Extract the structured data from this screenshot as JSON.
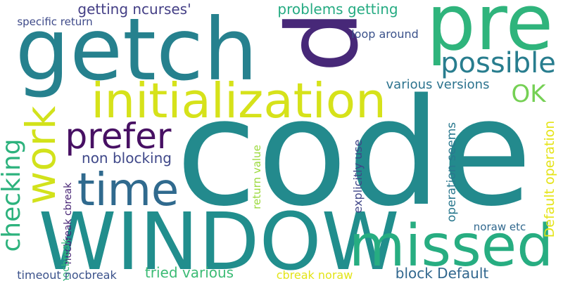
{
  "cloud": {
    "words": [
      {
        "text": "code",
        "color": "#238a8d",
        "rotate": 0
      },
      {
        "text": "WINDOW",
        "color": "#218e8d",
        "rotate": 0
      },
      {
        "text": "getch",
        "color": "#26818e",
        "rotate": 0
      },
      {
        "text": "p",
        "color": "#472878",
        "rotate": 90
      },
      {
        "text": "pre",
        "color": "#2fb47c",
        "rotate": 0
      },
      {
        "text": "initialization",
        "color": "#d6e21a",
        "rotate": 0
      },
      {
        "text": "missed",
        "color": "#27ad81",
        "rotate": 0
      },
      {
        "text": "time",
        "color": "#306a8e",
        "rotate": 0
      },
      {
        "text": "prefer",
        "color": "#471063",
        "rotate": 0
      },
      {
        "text": "work",
        "color": "#d2e21b",
        "rotate": -90
      },
      {
        "text": "possible",
        "color": "#287d8e",
        "rotate": 0
      },
      {
        "text": "checking",
        "color": "#2db27d",
        "rotate": -90
      },
      {
        "text": "OK",
        "color": "#75d054",
        "rotate": 0
      },
      {
        "text": "problems getting",
        "color": "#25ab82",
        "rotate": 0
      },
      {
        "text": "getting ncurses'",
        "color": "#433e85",
        "rotate": 0
      },
      {
        "text": "non blocking",
        "color": "#3f4889",
        "rotate": 0
      },
      {
        "text": "various versions",
        "color": "#2c738e",
        "rotate": 0
      },
      {
        "text": "tried various",
        "color": "#3cbb75",
        "rotate": 0
      },
      {
        "text": "block Default",
        "color": "#31678e",
        "rotate": 0
      },
      {
        "text": "specific return",
        "color": "#3e4a89",
        "rotate": 0
      },
      {
        "text": "loop around",
        "color": "#3b528b",
        "rotate": 0
      },
      {
        "text": "operation seems",
        "color": "#2a788e",
        "rotate": -90
      },
      {
        "text": "Default operation",
        "color": "#e5e419",
        "rotate": -90
      },
      {
        "text": "explicitly use",
        "color": "#404688",
        "rotate": -90
      },
      {
        "text": "return value",
        "color": "#9bd93c",
        "rotate": -90
      },
      {
        "text": "nocbreak cbreak",
        "color": "#482575",
        "rotate": -90
      },
      {
        "text": "nocbreak",
        "color": "#35b779",
        "rotate": -90
      },
      {
        "text": "noraw etc",
        "color": "#31688e",
        "rotate": 0
      },
      {
        "text": "timeout nocbreak",
        "color": "#3b528b",
        "rotate": 0
      },
      {
        "text": "cbreak noraw",
        "color": "#e3e418",
        "rotate": 0
      }
    ]
  }
}
